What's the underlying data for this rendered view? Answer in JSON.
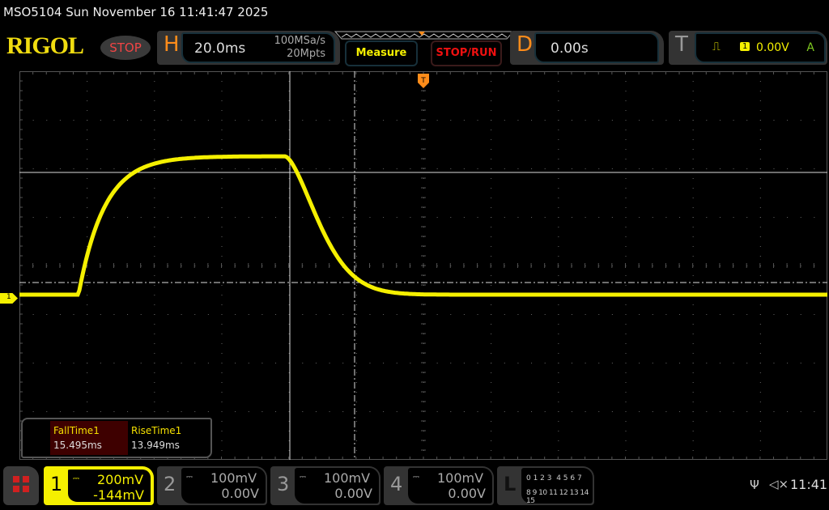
{
  "header": {
    "title": "MSO5104  Sun November 16 11:41:47 2025",
    "logo": "RIGOL",
    "run_state": "STOP"
  },
  "horizontal": {
    "label": "H",
    "timebase": "20.0ms",
    "sample_rate": "100MSa/s",
    "memory_depth": "20Mpts"
  },
  "buttons": {
    "measure": "Measure",
    "stop_run": "STOP/RUN"
  },
  "delay": {
    "label": "D",
    "value": "0.00s"
  },
  "trigger": {
    "label": "T",
    "source": "1",
    "level": "0.00V",
    "mode": "A",
    "icon": "rising-edge-icon"
  },
  "measurements": [
    {
      "name": "FallTime1",
      "value": "15.495ms"
    },
    {
      "name": "RiseTime1",
      "value": "13.949ms"
    }
  ],
  "channels": [
    {
      "num": "1",
      "scale": "200mV",
      "offset": "-144mV",
      "active": true
    },
    {
      "num": "2",
      "scale": "100mV",
      "offset": "0.00V",
      "active": false
    },
    {
      "num": "3",
      "scale": "100mV",
      "offset": "0.00V",
      "active": false
    },
    {
      "num": "4",
      "scale": "100mV",
      "offset": "0.00V",
      "active": false
    }
  ],
  "logic": {
    "label": "L",
    "row1": "0 1 2 3  4 5 6 7",
    "row2": "8 9 10 11 12 13 14 15"
  },
  "status": {
    "time": "11:41",
    "usb_icon": "usb-icon",
    "sound_icon": "muted-speaker-icon"
  },
  "colors": {
    "ch1": "#f5f000",
    "stop": "#f04545",
    "accent": "#ff8c1a"
  },
  "ch1_marker": "1"
}
